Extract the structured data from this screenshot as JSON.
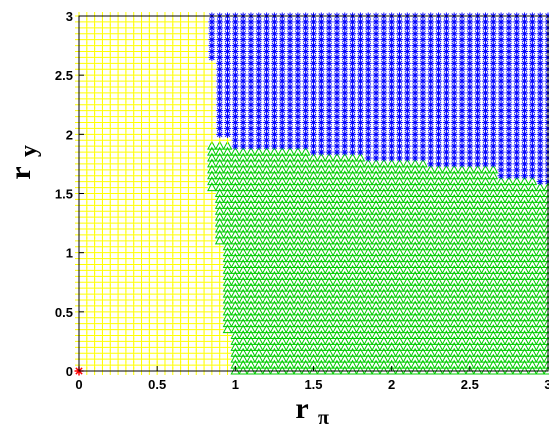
{
  "chart_data": {
    "type": "scatter",
    "xlim": [
      0,
      3
    ],
    "ylim": [
      0,
      3
    ],
    "xlabel": "r",
    "xlabel_sub": "π",
    "ylabel": "r",
    "ylabel_sub": "y",
    "x_ticks": [
      "0",
      "0.5",
      "1",
      "1.5",
      "2",
      "2.5",
      "3"
    ],
    "y_ticks": [
      "0",
      "0.5",
      "1",
      "1.5",
      "2",
      "2.5",
      "3"
    ],
    "grid": false,
    "grid_step": 0.05,
    "regions": [
      {
        "marker": "plus",
        "color": "#ffff00",
        "description_rule": "left of boundary",
        "boundary_x_by_y": [
          {
            "y_from": 0.0,
            "y_to": 1.85,
            "x_max": 0.95
          },
          {
            "y_from": 1.85,
            "y_to": 2.6,
            "x_max": 0.85
          },
          {
            "y_from": 2.6,
            "y_to": 3.0,
            "x_max": 0.75
          }
        ]
      },
      {
        "marker": "triangle",
        "color": "#00cc00",
        "lower_x_boundary": [
          {
            "y_from": 0.0,
            "y_to": 0.35,
            "x_min": 1.0
          },
          {
            "y_from": 0.35,
            "y_to": 1.1,
            "x_min": 0.95
          },
          {
            "y_from": 1.1,
            "y_to": 1.55,
            "x_min": 0.9
          },
          {
            "y_from": 1.55,
            "y_to": 1.95,
            "x_min": 0.85
          }
        ],
        "upper_y_boundary": [
          {
            "x_from": 0.85,
            "x_to": 0.95,
            "y_max": 1.95
          },
          {
            "x_from": 0.95,
            "x_to": 1.45,
            "y_max": 1.85
          },
          {
            "x_from": 1.45,
            "x_to": 1.8,
            "y_max": 1.8
          },
          {
            "x_from": 1.8,
            "x_to": 2.2,
            "y_max": 1.75
          },
          {
            "x_from": 2.2,
            "x_to": 2.65,
            "y_max": 1.7
          },
          {
            "x_from": 2.65,
            "x_to": 2.9,
            "y_max": 1.6
          },
          {
            "x_from": 2.9,
            "x_to": 3.0,
            "y_max": 1.55
          }
        ]
      },
      {
        "marker": "star",
        "color": "#0000ff",
        "rule": "above green region, right of yellow region"
      }
    ],
    "special_points": [
      {
        "x": 0,
        "y": 0,
        "marker": "star",
        "color": "#ff0000"
      }
    ]
  }
}
